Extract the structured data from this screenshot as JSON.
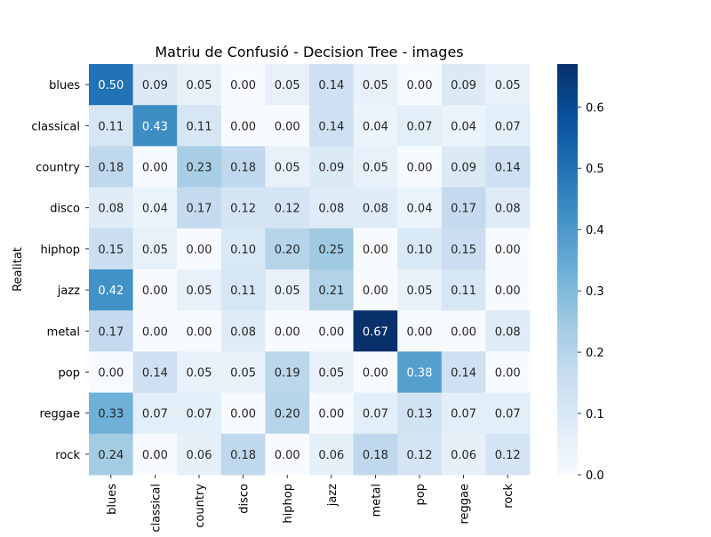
{
  "chart_data": {
    "type": "heatmap",
    "title": "Matriu de Confusió - Decision Tree - images",
    "ylabel": "Realitat",
    "xlabel": "",
    "rows": [
      "blues",
      "classical",
      "country",
      "disco",
      "hiphop",
      "jazz",
      "metal",
      "pop",
      "reggae",
      "rock"
    ],
    "columns": [
      "blues",
      "classical",
      "country",
      "disco",
      "hiphop",
      "jazz",
      "metal",
      "pop",
      "reggae",
      "rock"
    ],
    "values": [
      [
        0.5,
        0.09,
        0.05,
        0.0,
        0.05,
        0.14,
        0.05,
        0.0,
        0.09,
        0.05
      ],
      [
        0.11,
        0.43,
        0.11,
        0.0,
        0.0,
        0.14,
        0.04,
        0.07,
        0.04,
        0.07
      ],
      [
        0.18,
        0.0,
        0.23,
        0.18,
        0.05,
        0.09,
        0.05,
        0.0,
        0.09,
        0.14
      ],
      [
        0.08,
        0.04,
        0.17,
        0.12,
        0.12,
        0.08,
        0.08,
        0.04,
        0.17,
        0.08
      ],
      [
        0.15,
        0.05,
        0.0,
        0.1,
        0.2,
        0.25,
        0.0,
        0.1,
        0.15,
        0.0
      ],
      [
        0.42,
        0.0,
        0.05,
        0.11,
        0.05,
        0.21,
        0.0,
        0.05,
        0.11,
        0.0
      ],
      [
        0.17,
        0.0,
        0.0,
        0.08,
        0.0,
        0.0,
        0.67,
        0.0,
        0.0,
        0.08
      ],
      [
        0.0,
        0.14,
        0.05,
        0.05,
        0.19,
        0.05,
        0.0,
        0.38,
        0.14,
        0.0
      ],
      [
        0.33,
        0.07,
        0.07,
        0.0,
        0.2,
        0.0,
        0.07,
        0.13,
        0.07,
        0.07
      ],
      [
        0.24,
        0.0,
        0.06,
        0.18,
        0.0,
        0.06,
        0.18,
        0.12,
        0.06,
        0.12
      ]
    ],
    "value_format": "2 decimals",
    "colormap": "Blues",
    "vmin": 0,
    "vmax": 0.67,
    "colorbar": {
      "ticks": [
        0.0,
        0.1,
        0.2,
        0.3,
        0.4,
        0.5,
        0.6
      ],
      "tick_labels": [
        "0.0",
        "0.1",
        "0.2",
        "0.3",
        "0.4",
        "0.5",
        "0.6"
      ]
    },
    "annotation_colors": {
      "light": "#ffffff",
      "dark": "#262626"
    }
  }
}
